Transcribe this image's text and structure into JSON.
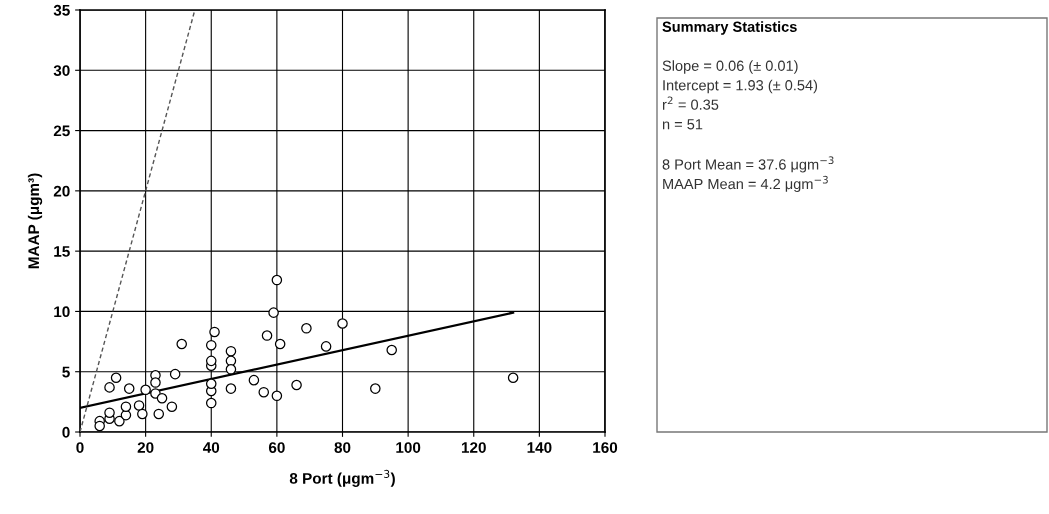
{
  "chart_data": {
    "type": "scatter",
    "xlabel": "8 Port (μgm$^{−3}$)",
    "ylabel": "MAAP (μgm³)",
    "xlim": [
      0,
      160
    ],
    "xticks": [
      0,
      20,
      40,
      60,
      80,
      100,
      120,
      140,
      160
    ],
    "ylim": [
      0,
      35
    ],
    "yticks": [
      0,
      5,
      10,
      15,
      20,
      25,
      30,
      35
    ],
    "grid": true,
    "series": [
      {
        "marker": "circle",
        "color": "#000000",
        "x": [
          6,
          6,
          9,
          9,
          12,
          11,
          9,
          14,
          14,
          15,
          18,
          19,
          20,
          23,
          23,
          23,
          25,
          24,
          28,
          29,
          31,
          40,
          40,
          40,
          40,
          40,
          40,
          41,
          46,
          46,
          46,
          46,
          53,
          57,
          56,
          60,
          59,
          60,
          61,
          66,
          69,
          75,
          80,
          90,
          95,
          132
        ],
        "values": [
          0.9,
          0.5,
          1.1,
          1.6,
          0.9,
          4.5,
          3.7,
          1.4,
          2.1,
          3.6,
          2.2,
          1.5,
          3.5,
          4.7,
          4.1,
          3.2,
          2.8,
          1.5,
          2.1,
          4.8,
          7.3,
          2.4,
          3.4,
          4.0,
          5.5,
          5.9,
          7.2,
          8.3,
          6.7,
          5.9,
          5.2,
          3.6,
          4.3,
          8.0,
          3.3,
          12.6,
          9.9,
          3.0,
          7.3,
          3.9,
          8.6,
          7.1,
          9.0,
          3.6,
          6.8,
          4.5
        ]
      },
      {
        "type": "line",
        "line_style": "solid",
        "color": "#000000",
        "x": [
          0,
          132
        ],
        "values": [
          2.0,
          9.9
        ]
      },
      {
        "type": "line",
        "line_style": "dashed",
        "color": "#555555",
        "x": [
          0,
          35
        ],
        "values": [
          0,
          35
        ]
      }
    ],
    "annotations": [
      "Summary Statistics",
      "Slope = 0.06 (± 0.01)",
      "Intercept = 1.93 (± 0.54)",
      "r$^{2}$ = 0.35",
      "n = 51",
      "8 Port Mean = 37.6 μgm$^{−3}$",
      "MAAP Mean = 4.2 μgm$^{−3}$"
    ]
  }
}
